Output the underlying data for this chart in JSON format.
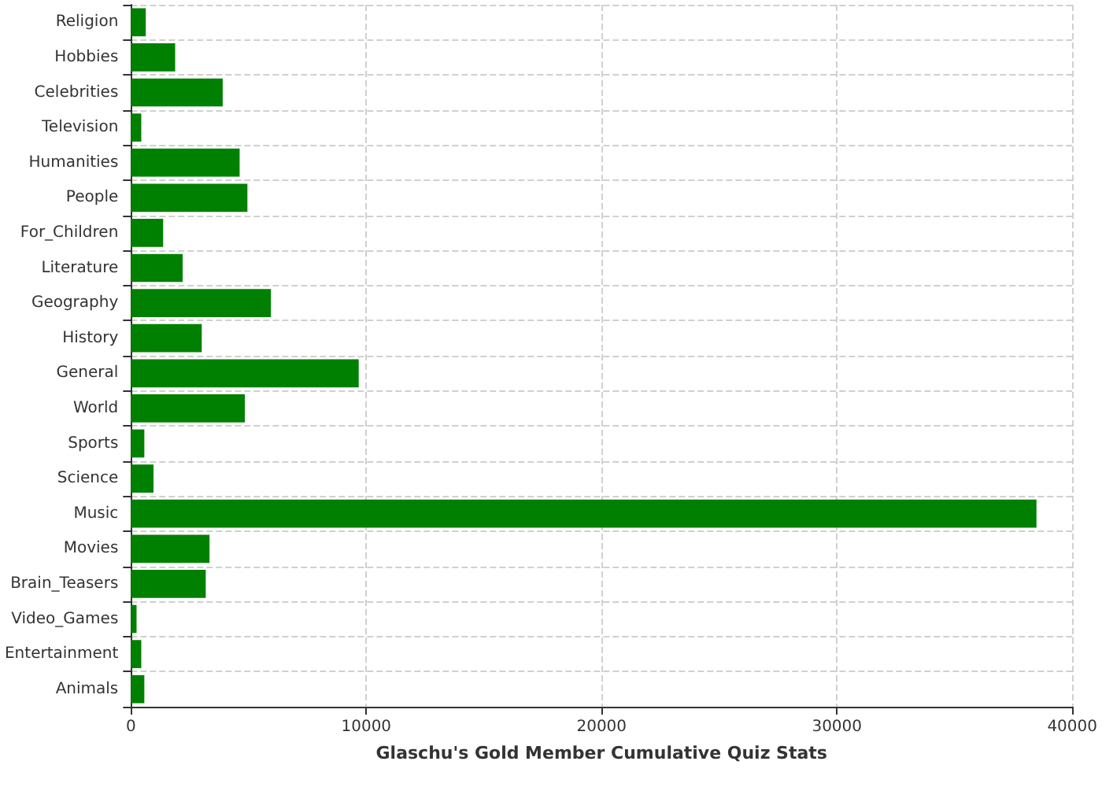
{
  "chart_data": {
    "type": "bar",
    "orientation": "horizontal",
    "xlabel": "Glaschu's Gold Member Cumulative Quiz Stats",
    "categories": [
      "Religion",
      "Hobbies",
      "Celebrities",
      "Television",
      "Humanities",
      "People",
      "For_Children",
      "Literature",
      "Geography",
      "History",
      "General",
      "World",
      "Sports",
      "Science",
      "Music",
      "Movies",
      "Brain_Teasers",
      "Video_Games",
      "Entertainment",
      "Animals"
    ],
    "values": [
      630,
      1880,
      3900,
      440,
      4620,
      4950,
      1370,
      2200,
      5950,
      3010,
      9680,
      4840,
      570,
      960,
      38480,
      3340,
      3180,
      240,
      440,
      570
    ],
    "color": "#008000",
    "xlim": [
      0,
      40000
    ],
    "xticks": [
      0,
      10000,
      20000,
      30000,
      40000
    ],
    "grid": true
  }
}
